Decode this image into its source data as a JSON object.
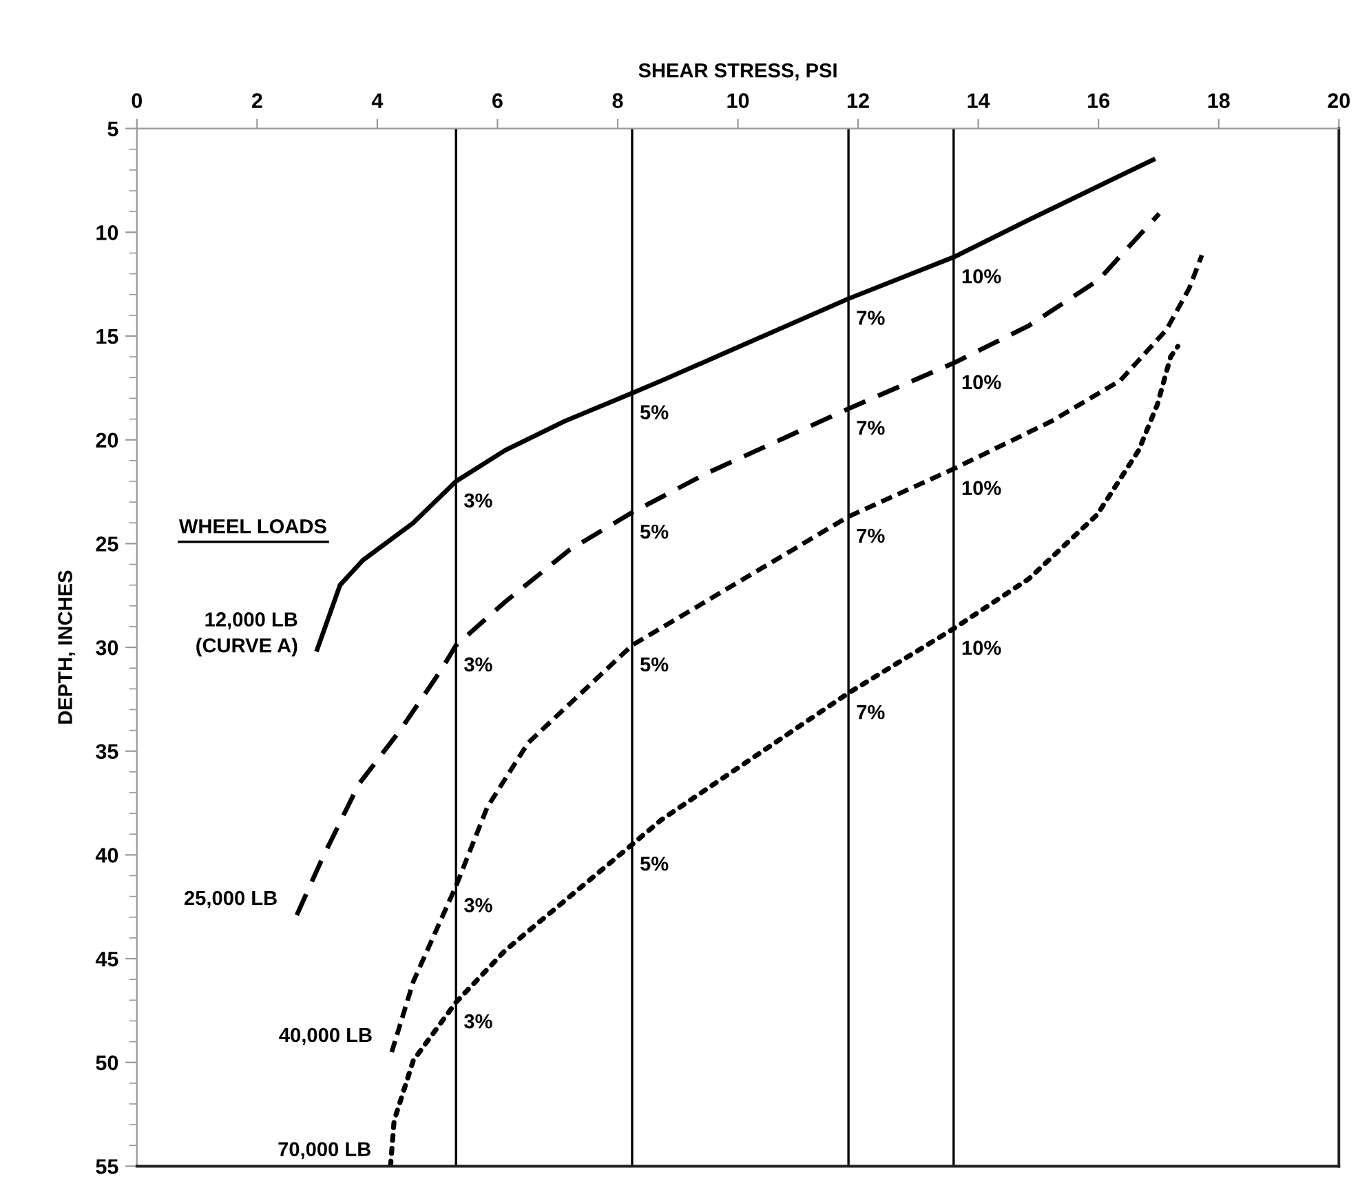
{
  "chart_data": {
    "type": "line",
    "xlabel": "SHEAR STRESS, PSI",
    "ylabel": "DEPTH, INCHES",
    "xlim": [
      0,
      20
    ],
    "xticks": [
      0,
      2,
      4,
      6,
      8,
      10,
      12,
      14,
      16,
      18,
      20
    ],
    "ylim": [
      55,
      5
    ],
    "yticks": [
      5,
      10,
      15,
      20,
      25,
      30,
      35,
      40,
      45,
      50,
      55
    ],
    "grid": false,
    "legend": false,
    "marker": "none",
    "series": [
      {
        "name": "12,000 LB\n(CURVE A)",
        "color": "#000000",
        "line_style": "solid",
        "x": [
          3.0,
          3.38,
          3.76,
          4.6,
          5.31,
          6.13,
          7.12,
          8.24,
          8.73,
          11.84,
          13.59,
          14.84,
          16.91
        ],
        "values": [
          30.1,
          27.0,
          25.8,
          24.0,
          22.0,
          20.5,
          19.1,
          17.75,
          17.15,
          13.2,
          11.2,
          9.4,
          6.5
        ]
      },
      {
        "name": "25,000 LB",
        "color": "#000000",
        "line_style": "dashed",
        "x": [
          2.66,
          3.08,
          3.69,
          4.38,
          5.06,
          5.31,
          6.13,
          7.2,
          8.24,
          9.49,
          11.84,
          13.59,
          14.84,
          16.0,
          17.01
        ],
        "values": [
          42.9,
          40.2,
          36.6,
          34.0,
          31.1,
          29.9,
          27.8,
          25.3,
          23.5,
          21.6,
          18.5,
          16.3,
          14.5,
          12.3,
          9.1
        ]
      },
      {
        "name": "40,000 LB",
        "color": "#000000",
        "line_style": "dashed",
        "x": [
          4.24,
          4.6,
          5.31,
          5.83,
          6.51,
          8.24,
          11.84,
          13.59,
          15.22,
          16.36,
          17.13,
          17.51,
          17.72
        ],
        "values": [
          49.5,
          46.1,
          41.5,
          37.7,
          34.6,
          29.9,
          23.7,
          21.4,
          19.1,
          17.15,
          14.7,
          12.7,
          11.1
        ]
      },
      {
        "name": "70,000 LB",
        "color": "#000000",
        "line_style": "dotted",
        "x": [
          4.22,
          4.28,
          4.6,
          5.31,
          6.13,
          8.24,
          8.73,
          11.84,
          13.59,
          14.84,
          15.98,
          16.67,
          16.98,
          17.2,
          17.32
        ],
        "values": [
          55.0,
          52.8,
          49.9,
          47.1,
          44.6,
          39.5,
          38.3,
          32.2,
          29.1,
          26.7,
          23.6,
          20.5,
          18.3,
          16.0,
          15.5
        ]
      }
    ],
    "ref_lines": [
      {
        "axis": "x",
        "value": 5.31,
        "color": "#000000"
      },
      {
        "axis": "x",
        "value": 8.24,
        "color": "#000000"
      },
      {
        "axis": "x",
        "value": 11.84,
        "color": "#000000"
      },
      {
        "axis": "x",
        "value": 13.59,
        "color": "#000000"
      }
    ],
    "annotations": [
      "WHEEL LOADS",
      {
        "text": "3%",
        "x": 5.31,
        "y": 22.0
      },
      {
        "text": "5%",
        "x": 8.24,
        "y": 17.75
      },
      {
        "text": "7%",
        "x": 11.84,
        "y": 13.2
      },
      {
        "text": "10%",
        "x": 13.59,
        "y": 11.2
      },
      {
        "text": "3%",
        "x": 5.31,
        "y": 29.9
      },
      {
        "text": "5%",
        "x": 8.24,
        "y": 23.5
      },
      {
        "text": "7%",
        "x": 11.84,
        "y": 18.5
      },
      {
        "text": "10%",
        "x": 13.59,
        "y": 16.3
      },
      {
        "text": "3%",
        "x": 5.31,
        "y": 41.5
      },
      {
        "text": "5%",
        "x": 8.24,
        "y": 29.9
      },
      {
        "text": "7%",
        "x": 11.84,
        "y": 23.7
      },
      {
        "text": "10%",
        "x": 13.59,
        "y": 21.4
      },
      {
        "text": "3%",
        "x": 5.31,
        "y": 47.1
      },
      {
        "text": "5%",
        "x": 8.24,
        "y": 39.5
      },
      {
        "text": "7%",
        "x": 11.84,
        "y": 32.2
      },
      {
        "text": "10%",
        "x": 13.59,
        "y": 29.1
      }
    ]
  }
}
